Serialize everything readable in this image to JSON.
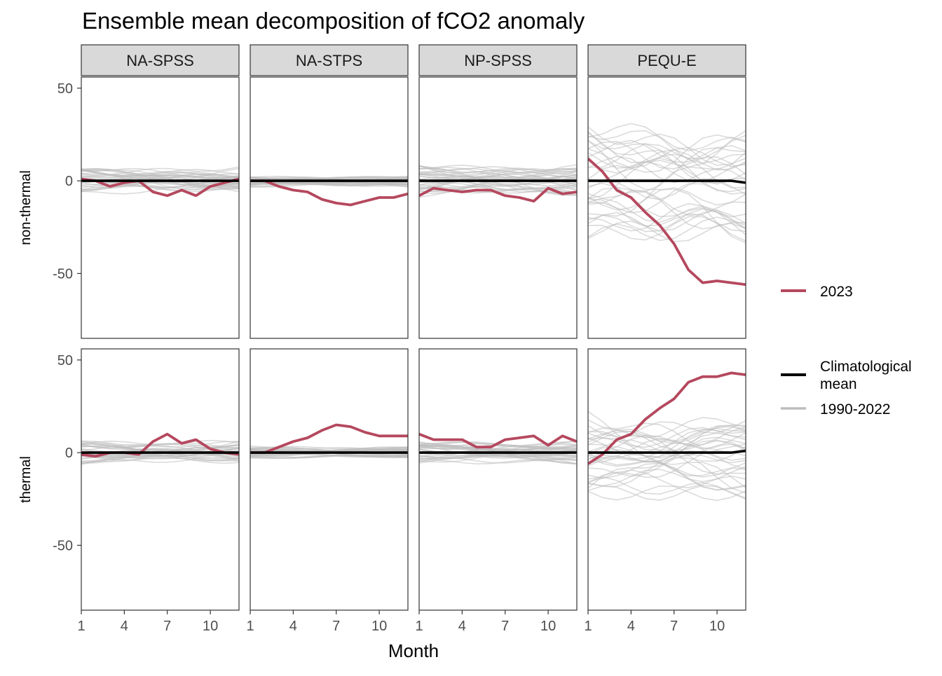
{
  "chart_data": {
    "type": "line",
    "title": "Ensemble mean decomposition of fCO2 anomaly",
    "xlabel": "Month",
    "x": [
      1,
      2,
      3,
      4,
      5,
      6,
      7,
      8,
      9,
      10,
      11,
      12
    ],
    "x_ticks": [
      1,
      4,
      7,
      10
    ],
    "ylim": [
      -85,
      56
    ],
    "y_ticks": [
      -50,
      0,
      50
    ],
    "facet_columns": [
      "NA-SPSS",
      "NA-STPS",
      "NP-SPSS",
      "PEQU-E"
    ],
    "facet_rows": [
      "non-thermal",
      "thermal"
    ],
    "grid": false,
    "legend_position": "right",
    "colors": {
      "2023": "#b5485e",
      "climatological_mean": "#000000",
      "1990-2022": "#bdbdbd"
    },
    "legend": [
      {
        "key": "2023",
        "label": "2023"
      },
      {
        "key": "climatological_mean",
        "label": "Climatological mean"
      },
      {
        "key": "1990-2022",
        "label": "1990-2022"
      }
    ],
    "panels": [
      {
        "row": "non-thermal",
        "column": "NA-SPSS",
        "series": [
          {
            "name": "2023",
            "values": [
              1,
              0,
              -3,
              -1,
              0,
              -6,
              -8,
              -5,
              -8,
              -3,
              -1,
              1
            ]
          },
          {
            "name": "Climatological mean",
            "values": [
              0,
              0,
              0,
              0,
              0,
              0,
              0,
              0,
              0,
              0,
              0,
              0
            ]
          }
        ],
        "spread_1990_2022": 7
      },
      {
        "row": "non-thermal",
        "column": "NA-STPS",
        "series": [
          {
            "name": "2023",
            "values": [
              0,
              0,
              -3,
              -5,
              -6,
              -10,
              -12,
              -13,
              -11,
              -9,
              -9,
              -7
            ]
          },
          {
            "name": "Climatological mean",
            "values": [
              0,
              0,
              0,
              0,
              0,
              0,
              0,
              0,
              0,
              0,
              0,
              0
            ]
          }
        ],
        "spread_1990_2022": 3
      },
      {
        "row": "non-thermal",
        "column": "NP-SPSS",
        "series": [
          {
            "name": "2023",
            "values": [
              -8,
              -4,
              -5,
              -6,
              -5,
              -5,
              -8,
              -9,
              -11,
              -4,
              -7,
              -6
            ]
          },
          {
            "name": "Climatological mean",
            "values": [
              0,
              0,
              0,
              0,
              0,
              0,
              0,
              0,
              0,
              0,
              0,
              0
            ]
          }
        ],
        "spread_1990_2022": 8
      },
      {
        "row": "non-thermal",
        "column": "PEQU-E",
        "series": [
          {
            "name": "2023",
            "values": [
              12,
              5,
              -5,
              -9,
              -17,
              -24,
              -34,
              -48,
              -55,
              -54,
              -55,
              -56
            ]
          },
          {
            "name": "Climatological mean",
            "values": [
              0,
              0,
              0,
              0,
              0,
              0,
              0,
              0,
              0,
              0,
              0,
              -1
            ]
          }
        ],
        "spread_1990_2022": 30
      },
      {
        "row": "thermal",
        "column": "NA-SPSS",
        "series": [
          {
            "name": "2023",
            "values": [
              -1,
              -2,
              0,
              0,
              -1,
              6,
              10,
              5,
              7,
              2,
              0,
              -1
            ]
          },
          {
            "name": "Climatological mean",
            "values": [
              0,
              0,
              0,
              0,
              0,
              0,
              0,
              0,
              0,
              0,
              0,
              0
            ]
          }
        ],
        "spread_1990_2022": 6
      },
      {
        "row": "thermal",
        "column": "NA-STPS",
        "series": [
          {
            "name": "2023",
            "values": [
              0,
              0,
              3,
              6,
              8,
              12,
              15,
              14,
              11,
              9,
              9,
              9
            ]
          },
          {
            "name": "Climatological mean",
            "values": [
              0,
              0,
              0,
              0,
              0,
              0,
              0,
              0,
              0,
              0,
              0,
              0
            ]
          }
        ],
        "spread_1990_2022": 3
      },
      {
        "row": "thermal",
        "column": "NP-SPSS",
        "series": [
          {
            "name": "2023",
            "values": [
              10,
              7,
              7,
              7,
              3,
              3,
              7,
              8,
              9,
              4,
              9,
              6
            ]
          },
          {
            "name": "Climatological mean",
            "values": [
              0,
              0,
              0,
              0,
              0,
              0,
              0,
              0,
              0,
              0,
              0,
              0
            ]
          }
        ],
        "spread_1990_2022": 6
      },
      {
        "row": "thermal",
        "column": "PEQU-E",
        "series": [
          {
            "name": "2023",
            "values": [
              -6,
              -1,
              7,
              10,
              18,
              24,
              29,
              38,
              41,
              41,
              43,
              42
            ]
          },
          {
            "name": "Climatological mean",
            "values": [
              0,
              0,
              0,
              0,
              0,
              0,
              0,
              0,
              0,
              0,
              0,
              1
            ]
          }
        ],
        "spread_1990_2022": 22
      }
    ]
  }
}
